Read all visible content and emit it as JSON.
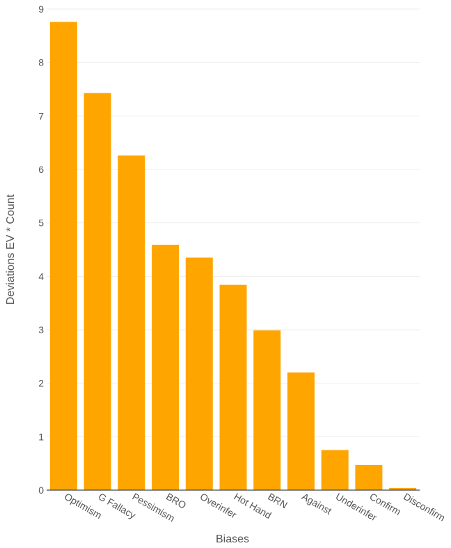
{
  "chart_data": {
    "type": "bar",
    "xlabel": "Biases",
    "ylabel": "Deviations EV  * Count",
    "categories": [
      "Optimism",
      "G Fallacy",
      "Pessimism",
      "BRO",
      "Overinfer",
      "Hot Hand",
      "BRN",
      "Against",
      "Underinfer",
      "Confirm",
      "Disconfirm"
    ],
    "values": [
      8.76,
      7.43,
      6.26,
      4.59,
      4.35,
      3.84,
      2.99,
      2.2,
      0.75,
      0.47,
      0.04
    ],
    "ylim": [
      0,
      9
    ],
    "yticks": [
      "0",
      "1",
      "2",
      "3",
      "4",
      "5",
      "6",
      "7",
      "8",
      "9"
    ],
    "grid": true,
    "colors": {
      "bar": "#FFA500",
      "grid": "#eeeeee",
      "axis": "#444444",
      "text": "#555555"
    }
  }
}
